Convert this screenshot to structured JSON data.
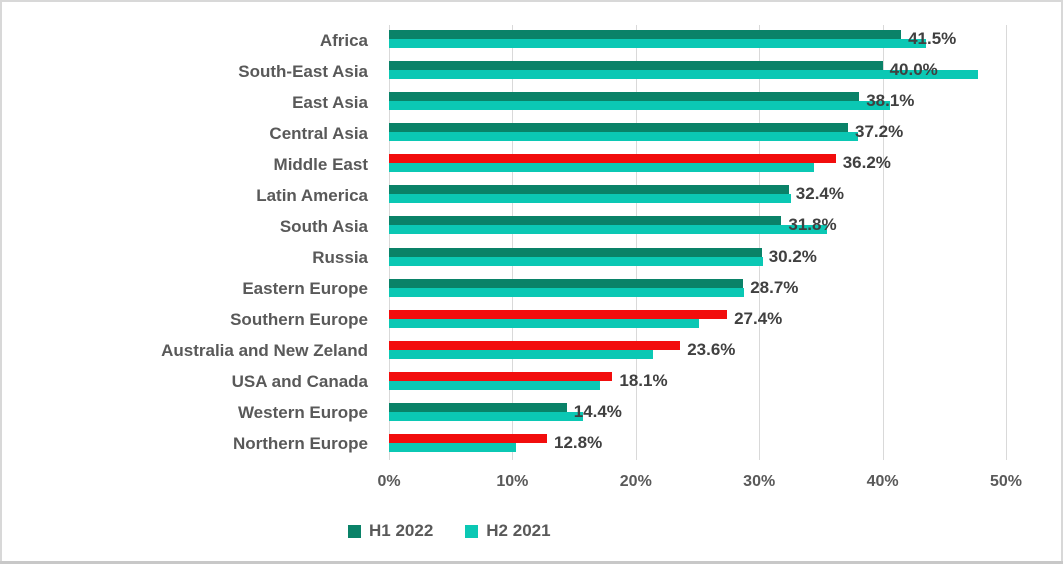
{
  "window": {
    "background": "#ffffff",
    "border_color": "#d8d8d8",
    "bottom_strip_color": "#c8c8c8"
  },
  "colors": {
    "h1_2022_green": "#0a8268",
    "h1_2022_red_highlight": "#f20d0d",
    "h2_2021_cyan": "#0bc8b4",
    "gridline": "#d9d9d9",
    "category_label": "#595959",
    "value_label": "#404040",
    "axis_label": "#595959"
  },
  "chart_data": {
    "type": "bar",
    "orientation": "horizontal",
    "title": "",
    "xlabel": "",
    "ylabel": "",
    "xlim": [
      0,
      50
    ],
    "grid": true,
    "legend_position": "bottom",
    "x_ticks": [
      "0%",
      "10%",
      "20%",
      "30%",
      "40%",
      "50%"
    ],
    "x_tick_values": [
      0,
      10,
      20,
      30,
      40,
      50
    ],
    "categories": [
      "Africa",
      "South-East Asia",
      "East Asia",
      "Central Asia",
      "Middle East",
      "Latin America",
      "South Asia",
      "Russia",
      "Eastern Europe",
      "Southern Europe",
      "Australia and New Zeland",
      "USA and Canada",
      "Western Europe",
      "Northern Europe"
    ],
    "series": [
      {
        "name": "H1 2022",
        "color": "#0a8268",
        "values": [
          41.5,
          40.0,
          38.1,
          37.2,
          36.2,
          32.4,
          31.8,
          30.2,
          28.7,
          27.4,
          23.6,
          18.1,
          14.4,
          12.8
        ],
        "data_labels": [
          "41.5%",
          "40.0%",
          "38.1%",
          "37.2%",
          "36.2%",
          "32.4%",
          "31.8%",
          "30.2%",
          "28.7%",
          "27.4%",
          "23.6%",
          "18.1%",
          "14.4%",
          "12.8%"
        ],
        "red_highlighted": [
          false,
          false,
          false,
          false,
          true,
          false,
          false,
          false,
          false,
          true,
          true,
          true,
          false,
          true
        ],
        "highlight_color": "#f20d0d"
      },
      {
        "name": "H2 2021",
        "color": "#0bc8b4",
        "values": [
          43.5,
          47.7,
          40.6,
          38.0,
          34.4,
          32.6,
          35.5,
          30.3,
          28.8,
          25.1,
          21.4,
          17.1,
          15.7,
          10.3
        ],
        "data_labels": []
      }
    ]
  },
  "legend": {
    "items": [
      {
        "label": "H1 2022",
        "color": "#0a8268"
      },
      {
        "label": "H2 2021",
        "color": "#0bc8b4"
      }
    ]
  }
}
